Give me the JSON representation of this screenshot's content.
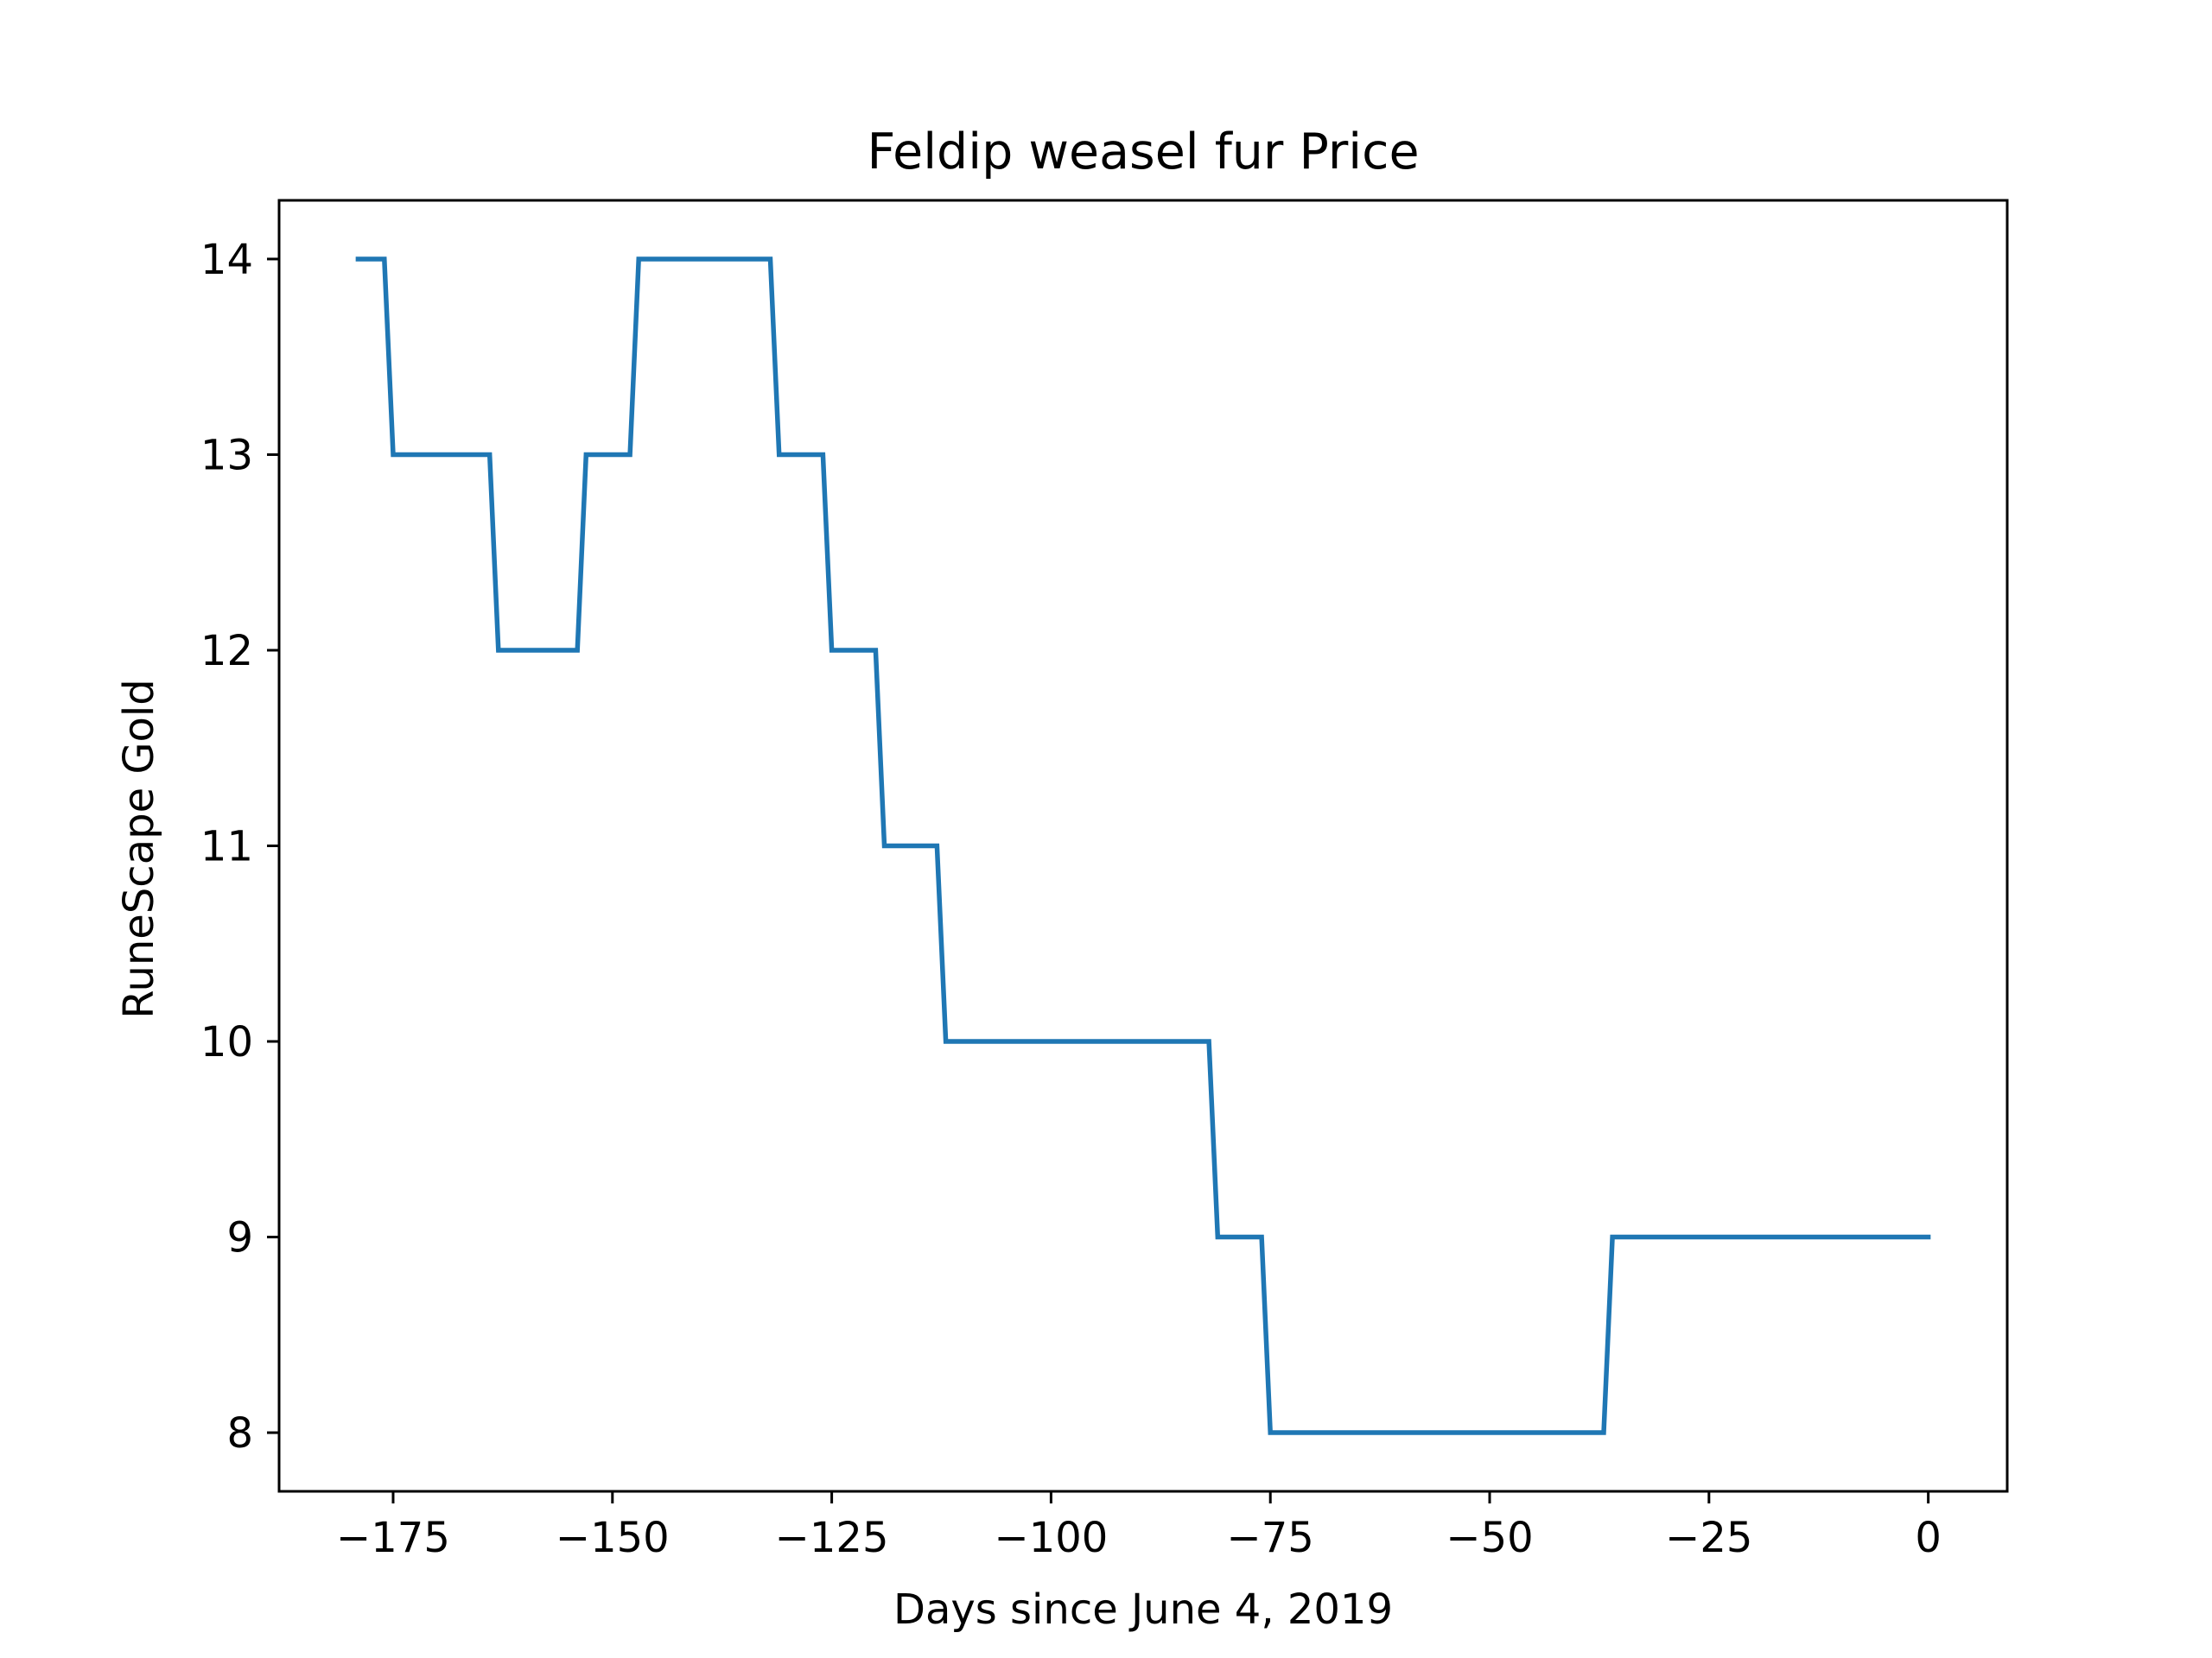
{
  "chart_data": {
    "type": "line",
    "title": "Feldip weasel fur Price",
    "xlabel": "Days since June 4, 2019",
    "ylabel": "RuneScape Gold",
    "xlim": [
      -188,
      9
    ],
    "ylim": [
      7.7,
      14.3
    ],
    "x_ticks": [
      -175,
      -150,
      -125,
      -100,
      -75,
      -50,
      -25,
      0
    ],
    "x_tick_labels": [
      "−175",
      "−150",
      "−125",
      "−100",
      "−75",
      "−50",
      "−25",
      "0"
    ],
    "y_ticks": [
      8,
      9,
      10,
      11,
      12,
      13,
      14
    ],
    "y_tick_labels": [
      "8",
      "9",
      "10",
      "11",
      "12",
      "13",
      "14"
    ],
    "grid": false,
    "legend": null,
    "colors": {
      "line": "#1f77b4",
      "axes": "#000000",
      "background": "#ffffff"
    },
    "series": [
      {
        "x": [
          -179,
          -176,
          -175,
          -164,
          -163,
          -154,
          -153,
          -148,
          -147,
          -132,
          -131,
          -126,
          -125,
          -120,
          -119,
          -113,
          -112,
          -82,
          -81,
          -76,
          -75,
          -37,
          -36,
          0
        ],
        "y": [
          14,
          14,
          13,
          13,
          12,
          12,
          13,
          13,
          14,
          14,
          13,
          13,
          12,
          12,
          11,
          11,
          10,
          10,
          9,
          9,
          8,
          8,
          9,
          9
        ]
      }
    ]
  }
}
